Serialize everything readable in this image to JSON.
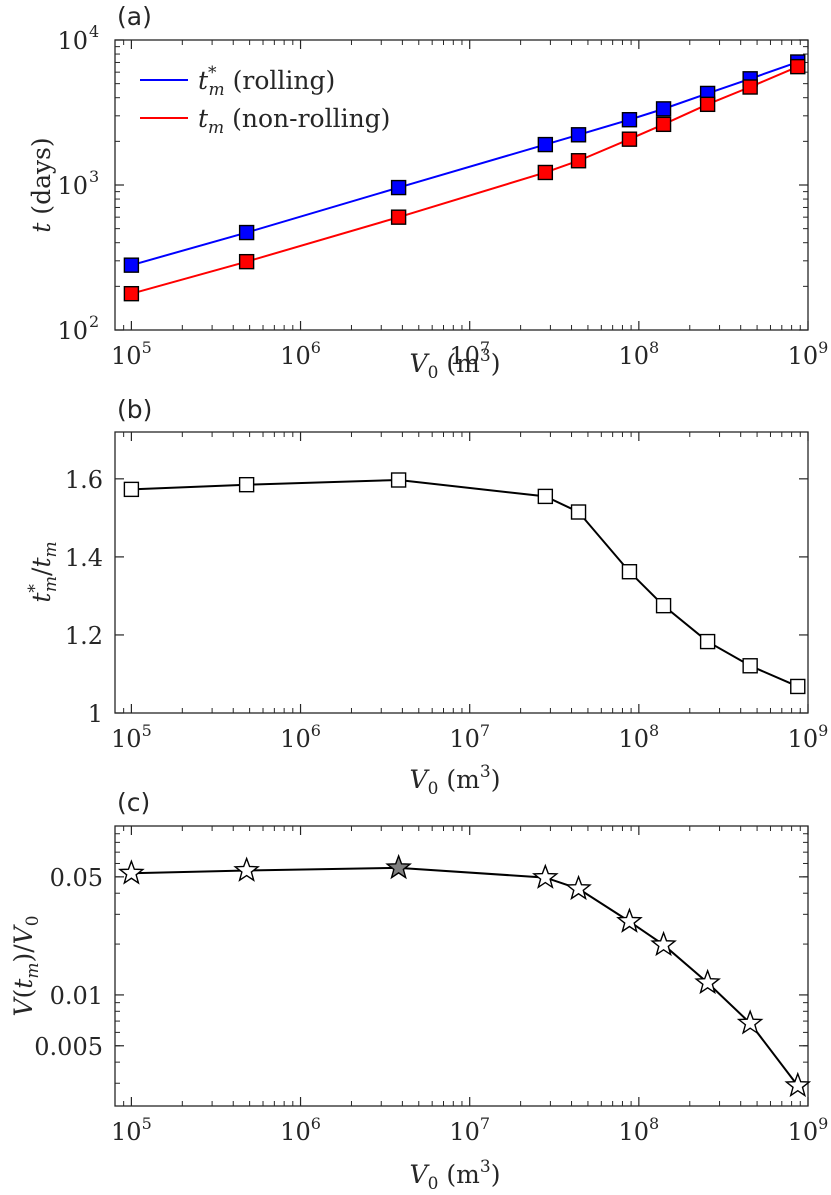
{
  "chart_data": [
    {
      "id": "a",
      "panel_label": "(a)",
      "type": "line",
      "xscale": "log",
      "yscale": "log",
      "xlim": [
        80000,
        1000000000
      ],
      "ylim": [
        100,
        10000
      ],
      "xticks": [
        100000,
        1000000,
        10000000,
        100000000,
        1000000000
      ],
      "xtick_labels": [
        {
          "base": "10",
          "exp": "5"
        },
        {
          "base": "10",
          "exp": "6"
        },
        {
          "base": "10",
          "exp": "7"
        },
        {
          "base": "10",
          "exp": "8"
        },
        {
          "base": "10",
          "exp": "9"
        }
      ],
      "yticks": [
        100,
        1000,
        10000
      ],
      "ytick_labels": [
        {
          "base": "10",
          "exp": "2"
        },
        {
          "base": "10",
          "exp": "3"
        },
        {
          "base": "10",
          "exp": "4"
        }
      ],
      "xlabel": {
        "var": "V",
        "sub": "0",
        "unit": "(m",
        "unit_exp": "3",
        "unit_close": ")"
      },
      "ylabel": {
        "var": "t",
        "unit": "(days)"
      },
      "legend_position": "top-left",
      "x": [
        100000,
        480000,
        3800000,
        28000000,
        44000000,
        88000000,
        140000000,
        255000000,
        455000000,
        870000000
      ],
      "series": [
        {
          "name": "rolling",
          "legend": {
            "var": "t",
            "sub": "m",
            "sup": "*",
            "text": "(rolling)"
          },
          "color": "#0000ff",
          "marker_fill": "#0000ff",
          "values": [
            280,
            470,
            960,
            1900,
            2220,
            2820,
            3350,
            4280,
            5400,
            7050
          ]
        },
        {
          "name": "non-rolling",
          "legend": {
            "var": "t",
            "sub": "m",
            "sup": "",
            "text": "(non-rolling)"
          },
          "color": "#ff0000",
          "marker_fill": "#ff0000",
          "values": [
            178,
            296,
            600,
            1220,
            1470,
            2070,
            2620,
            3600,
            4740,
            6550
          ]
        }
      ]
    },
    {
      "id": "b",
      "panel_label": "(b)",
      "type": "line",
      "xscale": "log",
      "yscale": "linear",
      "xlim": [
        80000,
        1000000000
      ],
      "ylim": [
        1,
        1.72
      ],
      "xticks": [
        100000,
        1000000,
        10000000,
        100000000,
        1000000000
      ],
      "xtick_labels": [
        {
          "base": "10",
          "exp": "5"
        },
        {
          "base": "10",
          "exp": "6"
        },
        {
          "base": "10",
          "exp": "7"
        },
        {
          "base": "10",
          "exp": "8"
        },
        {
          "base": "10",
          "exp": "9"
        }
      ],
      "yticks": [
        1,
        1.2,
        1.4,
        1.6
      ],
      "ytick_labels": [
        "1",
        "1.2",
        "1.4",
        "1.6"
      ],
      "xlabel": {
        "var": "V",
        "sub": "0",
        "unit": "(m",
        "unit_exp": "3",
        "unit_close": ")"
      },
      "ylabel": {
        "num_var": "t",
        "num_sub": "m",
        "num_sup": "*",
        "slash": "/",
        "den_var": "t",
        "den_sub": "m"
      },
      "x": [
        100000,
        480000,
        3800000,
        28000000,
        44000000,
        88000000,
        140000000,
        255000000,
        455000000,
        870000000
      ],
      "series": [
        {
          "name": "ratio",
          "color": "#000000",
          "marker": "square",
          "marker_fill": "#ffffff",
          "values": [
            1.573,
            1.585,
            1.597,
            1.555,
            1.515,
            1.362,
            1.275,
            1.183,
            1.121,
            1.068
          ]
        }
      ]
    },
    {
      "id": "c",
      "panel_label": "(c)",
      "type": "line",
      "xscale": "log",
      "yscale": "log",
      "xlim": [
        80000,
        1000000000
      ],
      "ylim": [
        0.0022,
        0.1
      ],
      "xticks": [
        100000,
        1000000,
        10000000,
        100000000,
        1000000000
      ],
      "xtick_labels": [
        {
          "base": "10",
          "exp": "5"
        },
        {
          "base": "10",
          "exp": "6"
        },
        {
          "base": "10",
          "exp": "7"
        },
        {
          "base": "10",
          "exp": "8"
        },
        {
          "base": "10",
          "exp": "9"
        }
      ],
      "yticks": [
        0.005,
        0.01,
        0.05
      ],
      "ytick_labels": [
        "0.005",
        "0.01",
        "0.05"
      ],
      "xlabel": {
        "var": "V",
        "sub": "0",
        "unit": "(m",
        "unit_exp": "3",
        "unit_close": ")"
      },
      "ylabel": {
        "var": "V",
        "paren_open": "(",
        "inner_var": "t",
        "inner_sub": "m",
        "paren_close": ")",
        "slash": "/",
        "den_var": "V",
        "den_sub": "0"
      },
      "x": [
        100000,
        480000,
        3800000,
        28000000,
        44000000,
        88000000,
        140000000,
        255000000,
        455000000,
        870000000
      ],
      "series": [
        {
          "name": "volume fraction",
          "color": "#000000",
          "marker": "star",
          "marker_fill": "#ffffff",
          "highlight_index": 2,
          "highlight_fill": "#7f7f7f",
          "values": [
            0.0525,
            0.0545,
            0.0565,
            0.0495,
            0.0425,
            0.0272,
            0.0198,
            0.0118,
            0.0068,
            0.0029
          ]
        }
      ]
    }
  ]
}
